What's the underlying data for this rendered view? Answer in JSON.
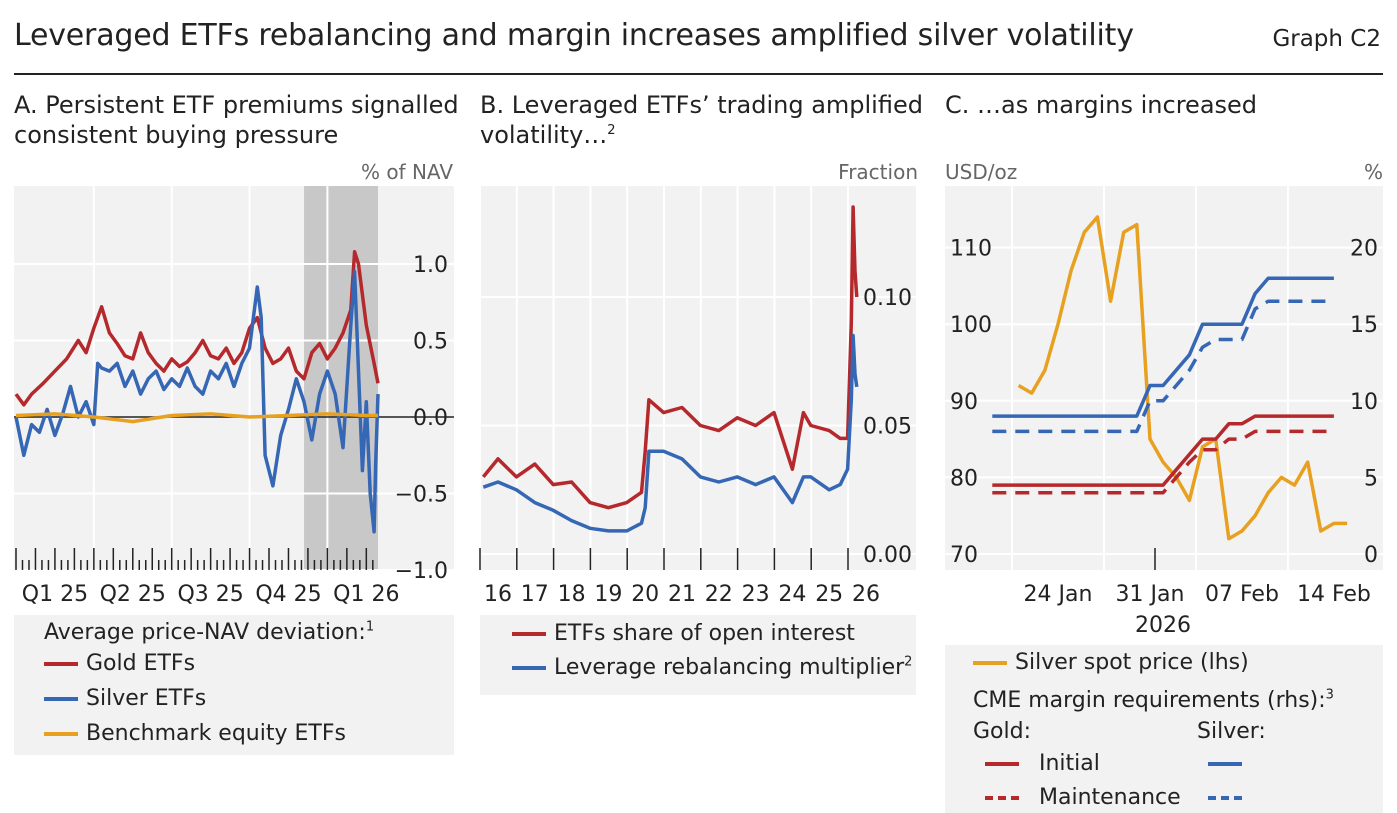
{
  "header": {
    "title": "Leveraged ETFs rebalancing and margin increases amplified silver volatility",
    "graph_id": "Graph C2"
  },
  "panels": {
    "a": {
      "title_line1": "A. Persistent ETF premiums signalled",
      "title_line2": "consistent buying pressure",
      "unit": "% of NAV",
      "legend_heading": "Average price-NAV deviation:",
      "legend_heading_note": "1",
      "legend": [
        "Gold ETFs",
        "Silver ETFs",
        "Benchmark equity ETFs"
      ]
    },
    "b": {
      "title_line1": "B. Leveraged ETFs’ trading amplified",
      "title_line2": "volatility…",
      "title_note": "2",
      "unit": "Fraction",
      "legend": [
        "ETFs share of open interest",
        "Leverage rebalancing multiplier"
      ],
      "legend_note": "2"
    },
    "c": {
      "title_line1": "C. …as margins increased",
      "unit_left": "USD/oz",
      "unit_right": "%",
      "legend_spot": "Silver spot price (lhs)",
      "legend_heading": "CME margin requirements (rhs):",
      "legend_heading_note": "3",
      "gold_label": "Gold:",
      "silver_label": "Silver:",
      "initial_label": "Initial",
      "maintenance_label": "Maintenance"
    }
  },
  "colors": {
    "gold": "#b5292c",
    "silver": "#3567b5",
    "benchmark": "#e8a020",
    "spot": "#e8a020",
    "plot_bg": "#f2f2f2",
    "shade": "#c8c8c8"
  },
  "chart_data": [
    {
      "panel": "A",
      "type": "line",
      "ylabel": "% of NAV",
      "ylim": [
        -1.0,
        1.3
      ],
      "yticks": [
        -1.0,
        -0.5,
        0.0,
        0.5,
        1.0
      ],
      "ytick_labels": [
        "−1.0",
        "−0.5",
        "0.0",
        "0.5",
        "1.0"
      ],
      "x_tick_labels": [
        "Q1 25",
        "Q2 25",
        "Q3 25",
        "Q4 25",
        "Q1 26"
      ],
      "x_range_quarters": [
        0,
        5
      ],
      "shaded_range_quarters": [
        3.7,
        4.65
      ],
      "series": [
        {
          "name": "Gold ETFs",
          "color": "#b5292c",
          "x": [
            0,
            0.1,
            0.2,
            0.35,
            0.5,
            0.65,
            0.8,
            0.9,
            1.0,
            1.1,
            1.2,
            1.3,
            1.4,
            1.5,
            1.6,
            1.7,
            1.8,
            1.9,
            2.0,
            2.1,
            2.2,
            2.3,
            2.4,
            2.5,
            2.6,
            2.7,
            2.8,
            2.9,
            3.0,
            3.1,
            3.2,
            3.3,
            3.4,
            3.5,
            3.6,
            3.7,
            3.8,
            3.9,
            4.0,
            4.1,
            4.2,
            4.3,
            4.35,
            4.4,
            4.5,
            4.6,
            4.65
          ],
          "values": [
            0.15,
            0.08,
            0.15,
            0.22,
            0.3,
            0.38,
            0.5,
            0.42,
            0.58,
            0.72,
            0.55,
            0.48,
            0.4,
            0.38,
            0.55,
            0.42,
            0.35,
            0.3,
            0.38,
            0.33,
            0.36,
            0.42,
            0.5,
            0.4,
            0.38,
            0.45,
            0.35,
            0.42,
            0.58,
            0.65,
            0.45,
            0.35,
            0.38,
            0.45,
            0.3,
            0.25,
            0.42,
            0.48,
            0.38,
            0.45,
            0.55,
            0.7,
            1.08,
            1.0,
            0.6,
            0.35,
            0.22
          ]
        },
        {
          "name": "Silver ETFs",
          "color": "#3567b5",
          "x": [
            0,
            0.1,
            0.2,
            0.3,
            0.4,
            0.5,
            0.6,
            0.7,
            0.8,
            0.9,
            1.0,
            1.05,
            1.1,
            1.2,
            1.3,
            1.4,
            1.5,
            1.6,
            1.7,
            1.8,
            1.9,
            2.0,
            2.1,
            2.2,
            2.3,
            2.4,
            2.5,
            2.6,
            2.7,
            2.8,
            2.9,
            3.0,
            3.1,
            3.15,
            3.2,
            3.3,
            3.4,
            3.5,
            3.6,
            3.7,
            3.8,
            3.9,
            4.0,
            4.1,
            4.2,
            4.3,
            4.35,
            4.4,
            4.45,
            4.5,
            4.55,
            4.6,
            4.62,
            4.65
          ],
          "values": [
            0.0,
            -0.25,
            -0.05,
            -0.1,
            0.05,
            -0.12,
            0.02,
            0.2,
            0.0,
            0.1,
            -0.05,
            0.35,
            0.32,
            0.3,
            0.35,
            0.2,
            0.3,
            0.15,
            0.25,
            0.3,
            0.18,
            0.25,
            0.2,
            0.32,
            0.2,
            0.15,
            0.3,
            0.25,
            0.35,
            0.2,
            0.35,
            0.45,
            0.85,
            0.65,
            -0.25,
            -0.45,
            -0.12,
            0.05,
            0.25,
            0.1,
            -0.15,
            0.15,
            0.3,
            0.15,
            -0.2,
            0.6,
            0.95,
            0.3,
            -0.35,
            0.1,
            -0.5,
            -0.75,
            -0.3,
            0.15
          ]
        },
        {
          "name": "Benchmark equity ETFs",
          "color": "#e8a020",
          "x": [
            0,
            0.5,
            1.0,
            1.5,
            2.0,
            2.5,
            3.0,
            3.5,
            4.0,
            4.5,
            4.65
          ],
          "values": [
            0.01,
            0.02,
            0.0,
            -0.03,
            0.01,
            0.02,
            0.0,
            0.01,
            0.02,
            0.01,
            0.01
          ]
        }
      ]
    },
    {
      "panel": "B",
      "type": "line",
      "ylabel": "Fraction",
      "ylim": [
        0.0,
        0.14
      ],
      "yticks": [
        0.0,
        0.05,
        0.1
      ],
      "ytick_labels": [
        "0.00",
        "0.05",
        "0.10"
      ],
      "x_tick_labels": [
        "16",
        "17",
        "18",
        "19",
        "20",
        "21",
        "22",
        "23",
        "24",
        "25",
        "26"
      ],
      "x_range": [
        15.5,
        26.4
      ],
      "series": [
        {
          "name": "ETFs share of open interest",
          "color": "#b5292c",
          "x": [
            15.6,
            16.0,
            16.5,
            17.0,
            17.5,
            18.0,
            18.5,
            19.0,
            19.5,
            19.9,
            20.0,
            20.1,
            20.5,
            21.0,
            21.5,
            22.0,
            22.5,
            23.0,
            23.5,
            24.0,
            24.3,
            24.5,
            25.0,
            25.3,
            25.5,
            25.6,
            25.65,
            25.7,
            25.75
          ],
          "values": [
            0.03,
            0.037,
            0.03,
            0.035,
            0.027,
            0.028,
            0.02,
            0.018,
            0.02,
            0.024,
            0.04,
            0.06,
            0.055,
            0.057,
            0.05,
            0.048,
            0.053,
            0.05,
            0.055,
            0.033,
            0.055,
            0.05,
            0.048,
            0.045,
            0.045,
            0.09,
            0.135,
            0.11,
            0.1
          ]
        },
        {
          "name": "Leverage rebalancing multiplier",
          "color": "#3567b5",
          "x": [
            15.6,
            16.0,
            16.5,
            17.0,
            17.5,
            18.0,
            18.5,
            19.0,
            19.5,
            19.9,
            20.0,
            20.1,
            20.5,
            21.0,
            21.5,
            22.0,
            22.5,
            23.0,
            23.5,
            24.0,
            24.3,
            24.5,
            25.0,
            25.3,
            25.5,
            25.6,
            25.65,
            25.7,
            25.75
          ],
          "values": [
            0.026,
            0.028,
            0.025,
            0.02,
            0.017,
            0.013,
            0.01,
            0.009,
            0.009,
            0.012,
            0.018,
            0.04,
            0.04,
            0.037,
            0.03,
            0.028,
            0.03,
            0.027,
            0.03,
            0.02,
            0.03,
            0.03,
            0.025,
            0.027,
            0.033,
            0.06,
            0.085,
            0.07,
            0.065
          ]
        }
      ]
    },
    {
      "panel": "C",
      "type": "line",
      "xlabel": "2026",
      "x_tick_labels": [
        "24 Jan",
        "31 Jan",
        "07 Feb",
        "14 Feb"
      ],
      "x_range_days": [
        19,
        46
      ],
      "x_tick_days": [
        24,
        31,
        38,
        45
      ],
      "left_axis": {
        "label": "USD/oz",
        "ylim": [
          70,
          117
        ],
        "yticks": [
          70,
          80,
          90,
          100,
          110
        ]
      },
      "right_axis": {
        "label": "%",
        "ylim": [
          0,
          23.5
        ],
        "yticks": [
          0,
          5,
          10,
          15,
          20
        ]
      },
      "series": [
        {
          "name": "Silver spot price (lhs)",
          "axis": "left",
          "color": "#e8a020",
          "style": "solid",
          "x": [
            21,
            22,
            23,
            24,
            25,
            26,
            27,
            28,
            29,
            30,
            31,
            32,
            33,
            34,
            35,
            36,
            37,
            38,
            39,
            40,
            41,
            42,
            43,
            44,
            45,
            46
          ],
          "values": [
            92,
            91,
            94,
            100,
            107,
            112,
            114,
            103,
            112,
            113,
            85,
            82,
            80,
            77,
            84,
            85,
            72,
            73,
            75,
            78,
            80,
            79,
            82,
            73,
            74,
            74
          ]
        },
        {
          "name": "Gold initial",
          "axis": "right",
          "color": "#b5292c",
          "style": "solid",
          "x": [
            19,
            30,
            32,
            33,
            34,
            35,
            36,
            37,
            38,
            39,
            45
          ],
          "values": [
            4.5,
            4.5,
            4.5,
            5.5,
            6.5,
            7.5,
            7.5,
            8.5,
            8.5,
            9,
            9
          ]
        },
        {
          "name": "Gold maintenance",
          "axis": "right",
          "color": "#b5292c",
          "style": "dashed",
          "x": [
            19,
            30,
            32,
            33,
            34,
            35,
            36,
            37,
            38,
            39,
            45
          ],
          "values": [
            4,
            4,
            4,
            5,
            6,
            6.8,
            6.8,
            7.5,
            7.5,
            8,
            8
          ]
        },
        {
          "name": "Silver initial",
          "axis": "right",
          "color": "#3567b5",
          "style": "solid",
          "x": [
            19,
            29,
            30,
            31,
            32,
            34,
            35,
            36,
            38,
            39,
            40,
            45
          ],
          "values": [
            9,
            9,
            9,
            11,
            11,
            13,
            15,
            15,
            15,
            17,
            18,
            18
          ]
        },
        {
          "name": "Silver maintenance",
          "axis": "right",
          "color": "#3567b5",
          "style": "dashed",
          "x": [
            19,
            29,
            30,
            31,
            32,
            34,
            35,
            36,
            38,
            39,
            40,
            45
          ],
          "values": [
            8,
            8,
            8,
            10,
            10,
            12,
            13.5,
            14,
            14,
            16,
            16.5,
            16.5
          ]
        }
      ]
    }
  ]
}
